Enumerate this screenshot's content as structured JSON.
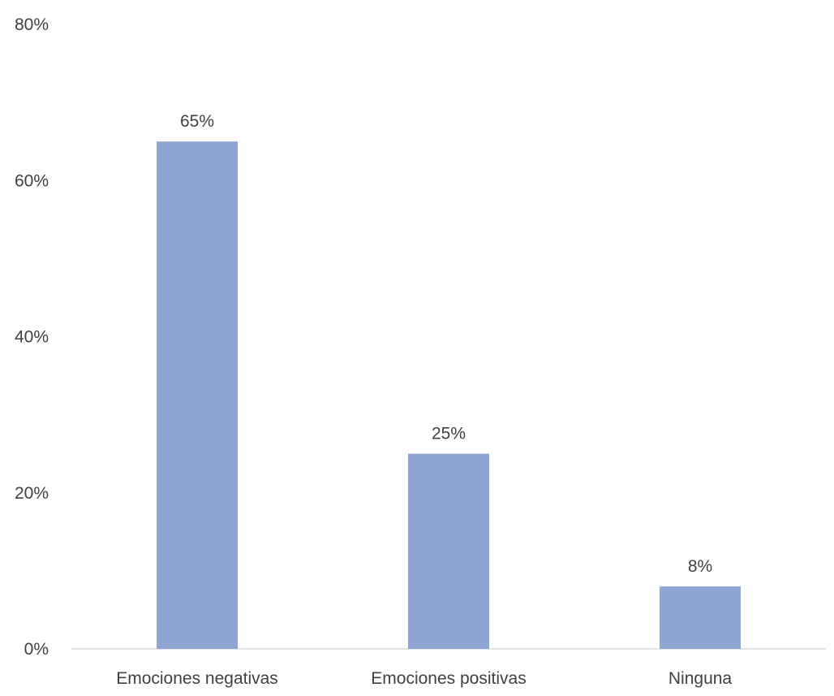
{
  "chart_data": {
    "type": "bar",
    "categories": [
      "Emociones negativas",
      "Emociones positivas",
      "Ninguna"
    ],
    "values": [
      65,
      25,
      8
    ],
    "value_labels": [
      "65%",
      "25%",
      "8%"
    ],
    "y_ticks": [
      0,
      20,
      40,
      60,
      80
    ],
    "y_tick_labels": [
      "0%",
      "20%",
      "40%",
      "60%",
      "80%"
    ],
    "ylim": [
      0,
      80
    ],
    "title": "",
    "xlabel": "",
    "ylabel": "",
    "grid": false,
    "legend": "none",
    "bar_color": "#8FA5D4",
    "text_color": "#404040",
    "axis_color": "#D9D9D9"
  }
}
